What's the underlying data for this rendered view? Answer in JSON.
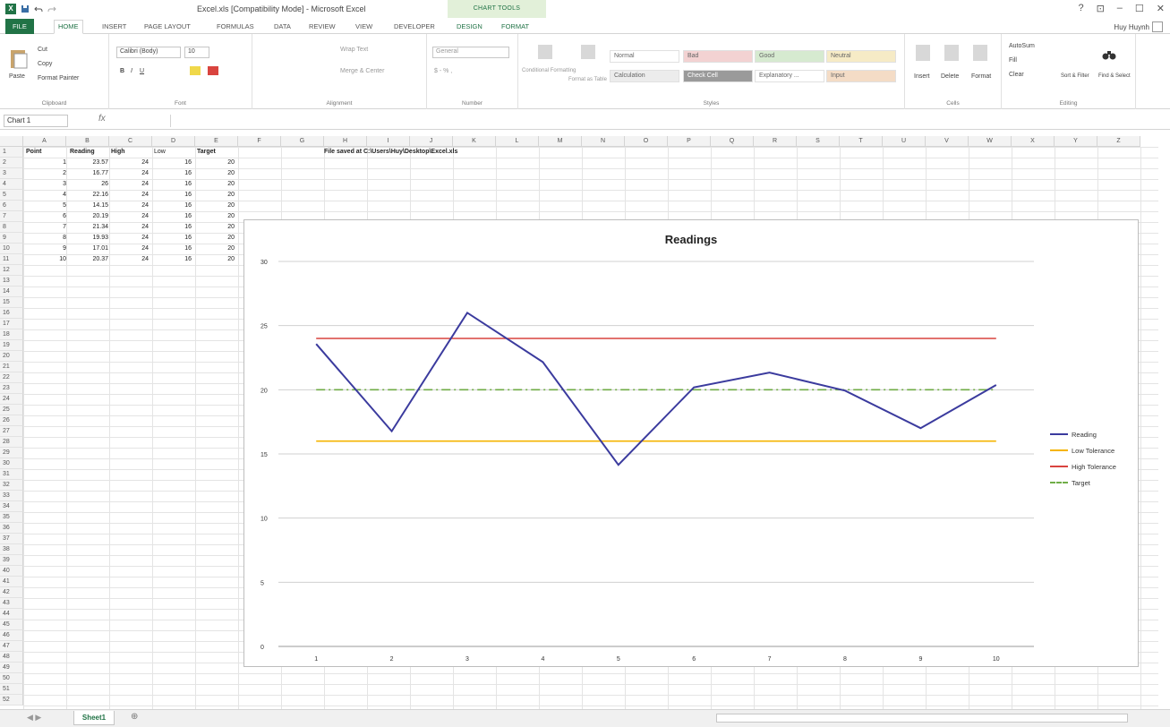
{
  "titlebar": {
    "title": "Excel.xls [Compatibility Mode] - Microsoft Excel",
    "chart_tools": "CHART TOOLS",
    "help": "?",
    "window_controls": [
      "⊡",
      "–",
      "☐",
      "✕"
    ]
  },
  "tabs": [
    "FILE",
    "HOME",
    "INSERT",
    "PAGE LAYOUT",
    "FORMULAS",
    "DATA",
    "REVIEW",
    "VIEW",
    "DEVELOPER",
    "DESIGN",
    "FORMAT"
  ],
  "user": "Huy Huynh",
  "ribbon": {
    "clipboard": {
      "paste": "Paste",
      "cut": "Cut",
      "copy": "Copy",
      "format_painter": "Format Painter",
      "label": "Clipboard"
    },
    "font": {
      "name": "Calibri (Body)",
      "size": "10",
      "label": "Font"
    },
    "alignment": {
      "wrap": "Wrap Text",
      "merge": "Merge & Center",
      "label": "Alignment"
    },
    "number": {
      "format": "General",
      "label": "Number"
    },
    "styles": {
      "conditional": "Conditional Formatting",
      "format_table": "Format as Table",
      "cells": [
        "Normal",
        "Bad",
        "Good",
        "Neutral",
        "Calculation",
        "Check Cell",
        "Explanatory ...",
        "Input"
      ],
      "label": "Styles"
    },
    "cells": {
      "insert": "Insert",
      "delete": "Delete",
      "format": "Format",
      "label": "Cells"
    },
    "editing": {
      "autosum": "AutoSum",
      "fill": "Fill",
      "clear": "Clear",
      "sort": "Sort & Filter",
      "find": "Find & Select",
      "label": "Editing"
    }
  },
  "formula_bar": {
    "name_box": "Chart 1",
    "fx": "fx"
  },
  "columns": [
    "A",
    "B",
    "C",
    "D",
    "E",
    "F",
    "G",
    "H",
    "I",
    "J",
    "K",
    "L",
    "M",
    "N",
    "O",
    "P",
    "Q",
    "R",
    "S",
    "T",
    "U",
    "V",
    "W",
    "X",
    "Y",
    "Z"
  ],
  "sheet": {
    "headers": [
      "Point",
      "Reading",
      "High",
      "Low",
      "Target"
    ],
    "rows": [
      [
        "1",
        "23.57",
        "24",
        "16",
        "20"
      ],
      [
        "2",
        "16.77",
        "24",
        "16",
        "20"
      ],
      [
        "3",
        "26",
        "24",
        "16",
        "20"
      ],
      [
        "4",
        "22.16",
        "24",
        "16",
        "20"
      ],
      [
        "5",
        "14.15",
        "24",
        "16",
        "20"
      ],
      [
        "6",
        "20.19",
        "24",
        "16",
        "20"
      ],
      [
        "7",
        "21.34",
        "24",
        "16",
        "20"
      ],
      [
        "8",
        "19.93",
        "24",
        "16",
        "20"
      ],
      [
        "9",
        "17.01",
        "24",
        "16",
        "20"
      ],
      [
        "10",
        "20.37",
        "24",
        "16",
        "20"
      ]
    ],
    "note": "File saved at C:\\Users\\Huy\\Desktop\\Excel.xls"
  },
  "chart_data": {
    "type": "line",
    "title": "Readings",
    "x": [
      1,
      2,
      3,
      4,
      5,
      6,
      7,
      8,
      9,
      10
    ],
    "ylim": [
      0,
      30
    ],
    "yticks": [
      0,
      5,
      10,
      15,
      20,
      25,
      30
    ],
    "grid": true,
    "legend": "right",
    "series": [
      {
        "name": "Reading",
        "values": [
          23.57,
          16.77,
          26,
          22.16,
          14.15,
          20.19,
          21.34,
          19.93,
          17.01,
          20.37
        ],
        "color": "#3b3b9e",
        "dash": "solid"
      },
      {
        "name": "Low Tolerance",
        "values": [
          16,
          16,
          16,
          16,
          16,
          16,
          16,
          16,
          16,
          16
        ],
        "color": "#f5b400",
        "dash": "solid"
      },
      {
        "name": "High Tolerance",
        "values": [
          24,
          24,
          24,
          24,
          24,
          24,
          24,
          24,
          24,
          24
        ],
        "color": "#d9443f",
        "dash": "solid"
      },
      {
        "name": "Target",
        "values": [
          20,
          20,
          20,
          20,
          20,
          20,
          20,
          20,
          20,
          20
        ],
        "color": "#70ad47",
        "dash": "dashdot"
      }
    ]
  },
  "sheet_tabs": {
    "active": "Sheet1",
    "add": "⊕",
    "nav": "◀ ▶"
  }
}
